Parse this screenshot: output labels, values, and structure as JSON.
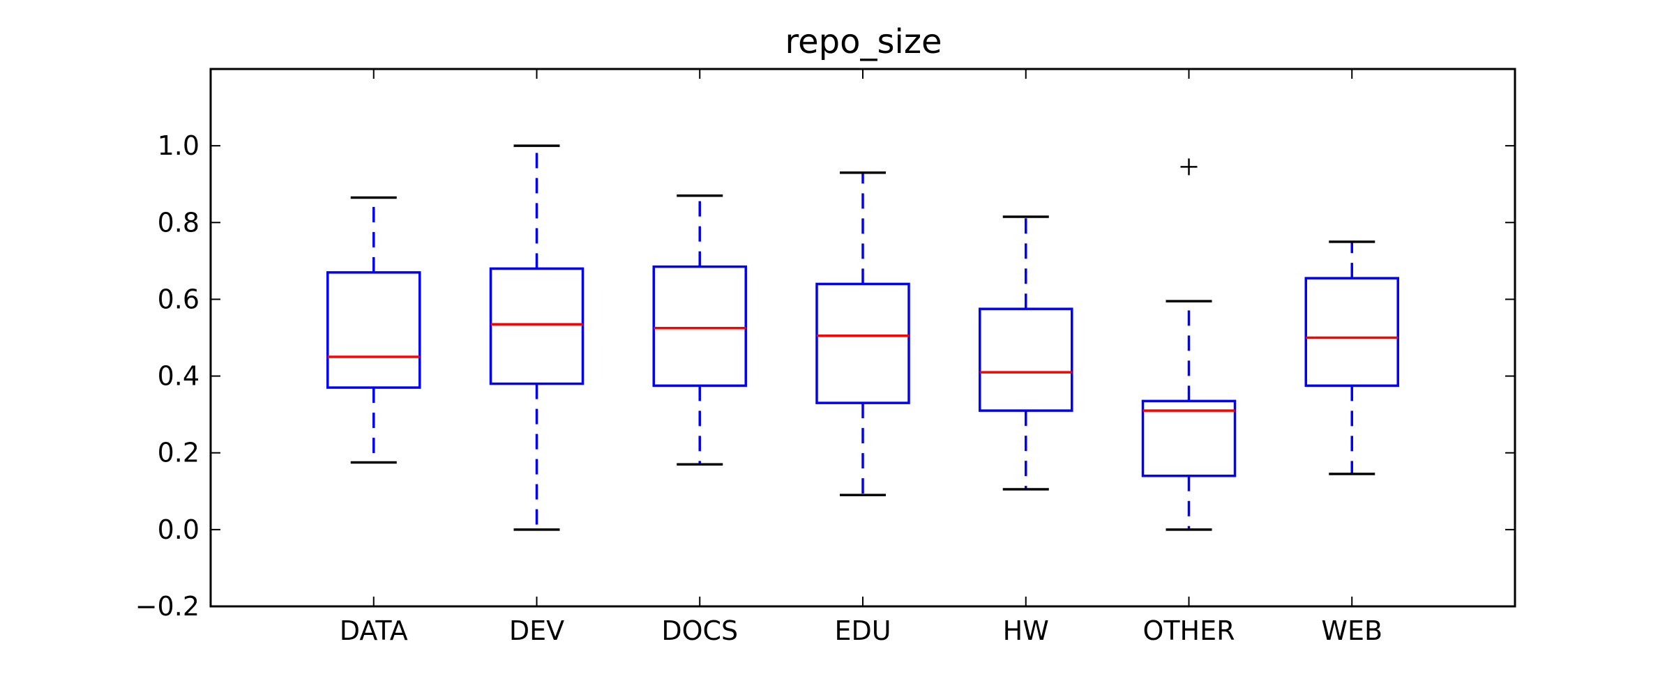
{
  "chart_data": {
    "type": "box",
    "title": "repo_size",
    "xlabel": "",
    "ylabel": "",
    "ylim": [
      -0.2,
      1.2
    ],
    "yticks": [
      -0.2,
      0.0,
      0.2,
      0.4,
      0.6,
      0.8,
      1.0
    ],
    "ytick_labels": [
      "−0.2",
      "0.0",
      "0.2",
      "0.4",
      "0.6",
      "0.8",
      "1.0"
    ],
    "grid": false,
    "categories": [
      "DATA",
      "DEV",
      "DOCS",
      "EDU",
      "HW",
      "OTHER",
      "WEB"
    ],
    "boxes": [
      {
        "category": "DATA",
        "whisker_low": 0.175,
        "q1": 0.37,
        "median": 0.45,
        "q3": 0.67,
        "whisker_high": 0.865,
        "outliers": []
      },
      {
        "category": "DEV",
        "whisker_low": 0.0,
        "q1": 0.38,
        "median": 0.535,
        "q3": 0.68,
        "whisker_high": 1.0,
        "outliers": []
      },
      {
        "category": "DOCS",
        "whisker_low": 0.17,
        "q1": 0.375,
        "median": 0.525,
        "q3": 0.685,
        "whisker_high": 0.87,
        "outliers": []
      },
      {
        "category": "EDU",
        "whisker_low": 0.09,
        "q1": 0.33,
        "median": 0.505,
        "q3": 0.64,
        "whisker_high": 0.93,
        "outliers": []
      },
      {
        "category": "HW",
        "whisker_low": 0.105,
        "q1": 0.31,
        "median": 0.41,
        "q3": 0.575,
        "whisker_high": 0.815,
        "outliers": []
      },
      {
        "category": "OTHER",
        "whisker_low": 0.0,
        "q1": 0.14,
        "median": 0.31,
        "q3": 0.335,
        "whisker_high": 0.595,
        "outliers": [
          0.945
        ]
      },
      {
        "category": "WEB",
        "whisker_low": 0.145,
        "q1": 0.375,
        "median": 0.5,
        "q3": 0.655,
        "whisker_high": 0.75,
        "outliers": []
      }
    ],
    "colors": {
      "box": "#0000ff",
      "whisker": "#0000ff",
      "cap": "#000000",
      "median": "#ff0000",
      "flier": "#000000",
      "axes": "#000000"
    }
  }
}
